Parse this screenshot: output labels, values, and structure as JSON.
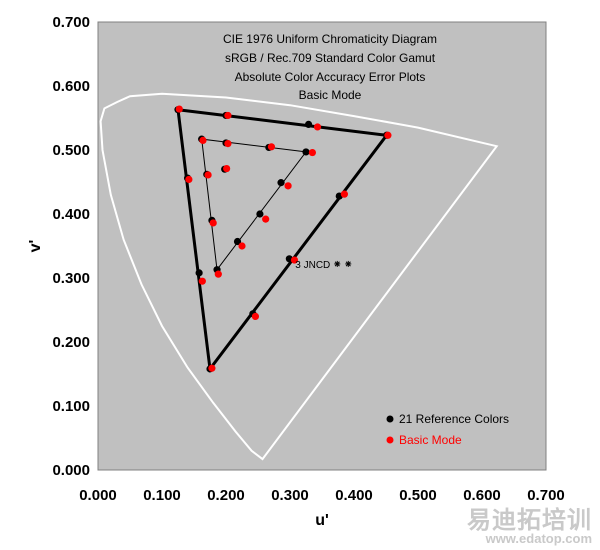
{
  "chart_data": {
    "type": "scatter",
    "title_lines": [
      "CIE 1976 Uniform Chromaticity Diagram",
      "sRGB / Rec.709 Standard Color Gamut",
      "Absolute Color Accuracy Error Plots"
    ],
    "subtitle": "Basic Mode",
    "xlabel": "u'",
    "ylabel": "v'",
    "xlim": [
      0,
      0.7
    ],
    "ylim": [
      0,
      0.7
    ],
    "x_ticks": [
      "0.000",
      "0.100",
      "0.200",
      "0.300",
      "0.400",
      "0.500",
      "0.600",
      "0.700"
    ],
    "y_ticks": [
      "0.000",
      "0.100",
      "0.200",
      "0.300",
      "0.400",
      "0.500",
      "0.600",
      "0.700"
    ],
    "colors": {
      "plot_bg": "#c0c0c0",
      "locus": "#ffffff",
      "reference": "#000000",
      "measured": "#ff0000",
      "subtitle": "#ff0000"
    },
    "spectral_locus": [
      [
        0.257,
        0.017
      ],
      [
        0.24,
        0.03
      ],
      [
        0.215,
        0.06
      ],
      [
        0.18,
        0.105
      ],
      [
        0.14,
        0.16
      ],
      [
        0.1,
        0.225
      ],
      [
        0.068,
        0.29
      ],
      [
        0.04,
        0.36
      ],
      [
        0.02,
        0.43
      ],
      [
        0.007,
        0.5
      ],
      [
        0.004,
        0.545
      ],
      [
        0.01,
        0.565
      ],
      [
        0.03,
        0.575
      ],
      [
        0.05,
        0.584
      ],
      [
        0.1,
        0.588
      ],
      [
        0.2,
        0.582
      ],
      [
        0.3,
        0.57
      ],
      [
        0.4,
        0.553
      ],
      [
        0.5,
        0.535
      ],
      [
        0.623,
        0.506
      ]
    ],
    "gamut_triangle": [
      [
        0.451,
        0.523
      ],
      [
        0.125,
        0.563
      ],
      [
        0.175,
        0.158
      ]
    ],
    "inner_triangle": [
      [
        0.325,
        0.497
      ],
      [
        0.162,
        0.517
      ],
      [
        0.186,
        0.313
      ]
    ],
    "series": [
      {
        "name": "21 Reference Colors",
        "color": "#000000",
        "points": [
          [
            0.451,
            0.523
          ],
          [
            0.125,
            0.563
          ],
          [
            0.175,
            0.158
          ],
          [
            0.329,
            0.54
          ],
          [
            0.2,
            0.554
          ],
          [
            0.14,
            0.456
          ],
          [
            0.158,
            0.308
          ],
          [
            0.242,
            0.244
          ],
          [
            0.299,
            0.33
          ],
          [
            0.377,
            0.428
          ],
          [
            0.325,
            0.497
          ],
          [
            0.162,
            0.517
          ],
          [
            0.186,
            0.313
          ],
          [
            0.267,
            0.504
          ],
          [
            0.2,
            0.511
          ],
          [
            0.178,
            0.39
          ],
          [
            0.218,
            0.357
          ],
          [
            0.253,
            0.4
          ],
          [
            0.286,
            0.449
          ],
          [
            0.198,
            0.47
          ],
          [
            0.17,
            0.462
          ]
        ]
      },
      {
        "name": "Basic Mode",
        "color": "#ff0000",
        "points": [
          [
            0.453,
            0.523
          ],
          [
            0.127,
            0.564
          ],
          [
            0.178,
            0.159
          ],
          [
            0.343,
            0.536
          ],
          [
            0.203,
            0.554
          ],
          [
            0.142,
            0.454
          ],
          [
            0.163,
            0.295
          ],
          [
            0.246,
            0.24
          ],
          [
            0.307,
            0.328
          ],
          [
            0.385,
            0.431
          ],
          [
            0.335,
            0.496
          ],
          [
            0.164,
            0.515
          ],
          [
            0.188,
            0.306
          ],
          [
            0.271,
            0.505
          ],
          [
            0.203,
            0.51
          ],
          [
            0.18,
            0.386
          ],
          [
            0.225,
            0.35
          ],
          [
            0.262,
            0.392
          ],
          [
            0.297,
            0.444
          ],
          [
            0.201,
            0.471
          ],
          [
            0.172,
            0.461
          ]
        ]
      }
    ],
    "annotation": {
      "label": "3 JNCD",
      "u": 0.352,
      "v": 0.322
    }
  },
  "watermark": {
    "brand": "易迪拓培训",
    "url": "www.edatop.com"
  }
}
